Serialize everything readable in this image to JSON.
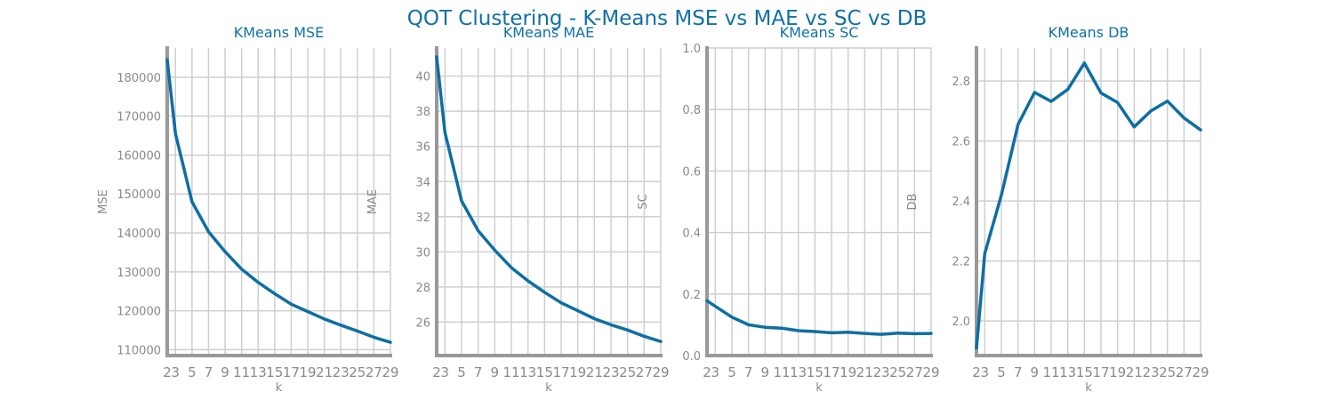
{
  "figure": {
    "suptitle": "QOT Clustering - K-Means MSE vs MAE vs SC vs DB"
  },
  "colors": {
    "line": "#0e6fa3",
    "title": "#1170a8",
    "tick": "#8a8a8a",
    "grid": "#cfcfcf",
    "spine": "#999999"
  },
  "chart_data": [
    {
      "type": "line",
      "title": "KMeans MSE",
      "xlabel": "k",
      "ylabel": "MSE",
      "x": [
        2,
        3,
        5,
        7,
        9,
        11,
        13,
        15,
        17,
        19,
        21,
        23,
        25,
        27,
        29
      ],
      "values": [
        184500,
        165500,
        148000,
        140300,
        135200,
        130700,
        127300,
        124400,
        121700,
        119800,
        117900,
        116300,
        114800,
        113200,
        111900
      ],
      "xlim": [
        2,
        29
      ],
      "ylim": [
        108500,
        187500
      ],
      "yticks": [
        110000,
        120000,
        130000,
        140000,
        150000,
        160000,
        170000,
        180000
      ],
      "ytick_labels": [
        "110000",
        "120000",
        "130000",
        "140000",
        "150000",
        "160000",
        "170000",
        "180000"
      ],
      "xticks": [
        2,
        3,
        5,
        7,
        9,
        11,
        13,
        15,
        17,
        19,
        21,
        23,
        25,
        27,
        29
      ],
      "xtick_labels": [
        "2",
        "3",
        "5",
        "7",
        "9",
        "11",
        "13",
        "15",
        "17",
        "19",
        "21",
        "23",
        "25",
        "27",
        "29"
      ],
      "grid": true
    },
    {
      "type": "line",
      "title": "KMeans MAE",
      "xlabel": "k",
      "ylabel": "MAE",
      "x": [
        2,
        3,
        5,
        7,
        9,
        11,
        13,
        15,
        17,
        19,
        21,
        23,
        25,
        27,
        29
      ],
      "values": [
        41.1,
        36.8,
        32.9,
        31.2,
        30.1,
        29.1,
        28.35,
        27.7,
        27.1,
        26.65,
        26.2,
        25.85,
        25.55,
        25.2,
        24.9
      ],
      "xlim": [
        2,
        29
      ],
      "ylim": [
        24.1,
        41.6
      ],
      "yticks": [
        26,
        28,
        30,
        32,
        34,
        36,
        38,
        40
      ],
      "ytick_labels": [
        "26",
        "28",
        "30",
        "32",
        "34",
        "36",
        "38",
        "40"
      ],
      "xticks": [
        2,
        3,
        5,
        7,
        9,
        11,
        13,
        15,
        17,
        19,
        21,
        23,
        25,
        27,
        29
      ],
      "xtick_labels": [
        "2",
        "3",
        "5",
        "7",
        "9",
        "11",
        "13",
        "15",
        "17",
        "19",
        "21",
        "23",
        "25",
        "27",
        "29"
      ],
      "grid": true
    },
    {
      "type": "line",
      "title": "KMeans SC",
      "xlabel": "k",
      "ylabel": "SC",
      "x": [
        2,
        3,
        5,
        7,
        9,
        11,
        13,
        15,
        17,
        19,
        21,
        23,
        25,
        27,
        29
      ],
      "values": [
        0.178,
        0.16,
        0.125,
        0.1,
        0.092,
        0.089,
        0.081,
        0.078,
        0.074,
        0.076,
        0.072,
        0.069,
        0.073,
        0.071,
        0.072
      ],
      "xlim": [
        2,
        29
      ],
      "ylim": [
        0.0,
        1.0
      ],
      "yticks": [
        0.0,
        0.2,
        0.4,
        0.6,
        0.8,
        1.0
      ],
      "ytick_labels": [
        "0.0",
        "0.2",
        "0.4",
        "0.6",
        "0.8",
        "1.0"
      ],
      "xticks": [
        2,
        3,
        5,
        7,
        9,
        11,
        13,
        15,
        17,
        19,
        21,
        23,
        25,
        27,
        29
      ],
      "xtick_labels": [
        "2",
        "3",
        "5",
        "7",
        "9",
        "11",
        "13",
        "15",
        "17",
        "19",
        "21",
        "23",
        "25",
        "27",
        "29"
      ],
      "grid": true
    },
    {
      "type": "line",
      "title": "KMeans DB",
      "xlabel": "k",
      "ylabel": "DB",
      "x": [
        2,
        3,
        5,
        7,
        9,
        11,
        13,
        15,
        17,
        19,
        21,
        23,
        25,
        27,
        29
      ],
      "values": [
        1.91,
        2.225,
        2.42,
        2.655,
        2.762,
        2.732,
        2.772,
        2.86,
        2.76,
        2.728,
        2.647,
        2.7,
        2.733,
        2.677,
        2.637
      ],
      "xlim": [
        2,
        29
      ],
      "ylim": [
        1.885,
        2.91
      ],
      "yticks": [
        2.0,
        2.2,
        2.4,
        2.6,
        2.8
      ],
      "ytick_labels": [
        "2.0",
        "2.2",
        "2.4",
        "2.6",
        "2.8"
      ],
      "xticks": [
        2,
        3,
        5,
        7,
        9,
        11,
        13,
        15,
        17,
        19,
        21,
        23,
        25,
        27,
        29
      ],
      "xtick_labels": [
        "2",
        "3",
        "5",
        "7",
        "9",
        "11",
        "13",
        "15",
        "17",
        "19",
        "21",
        "23",
        "25",
        "27",
        "29"
      ],
      "grid": true
    }
  ]
}
